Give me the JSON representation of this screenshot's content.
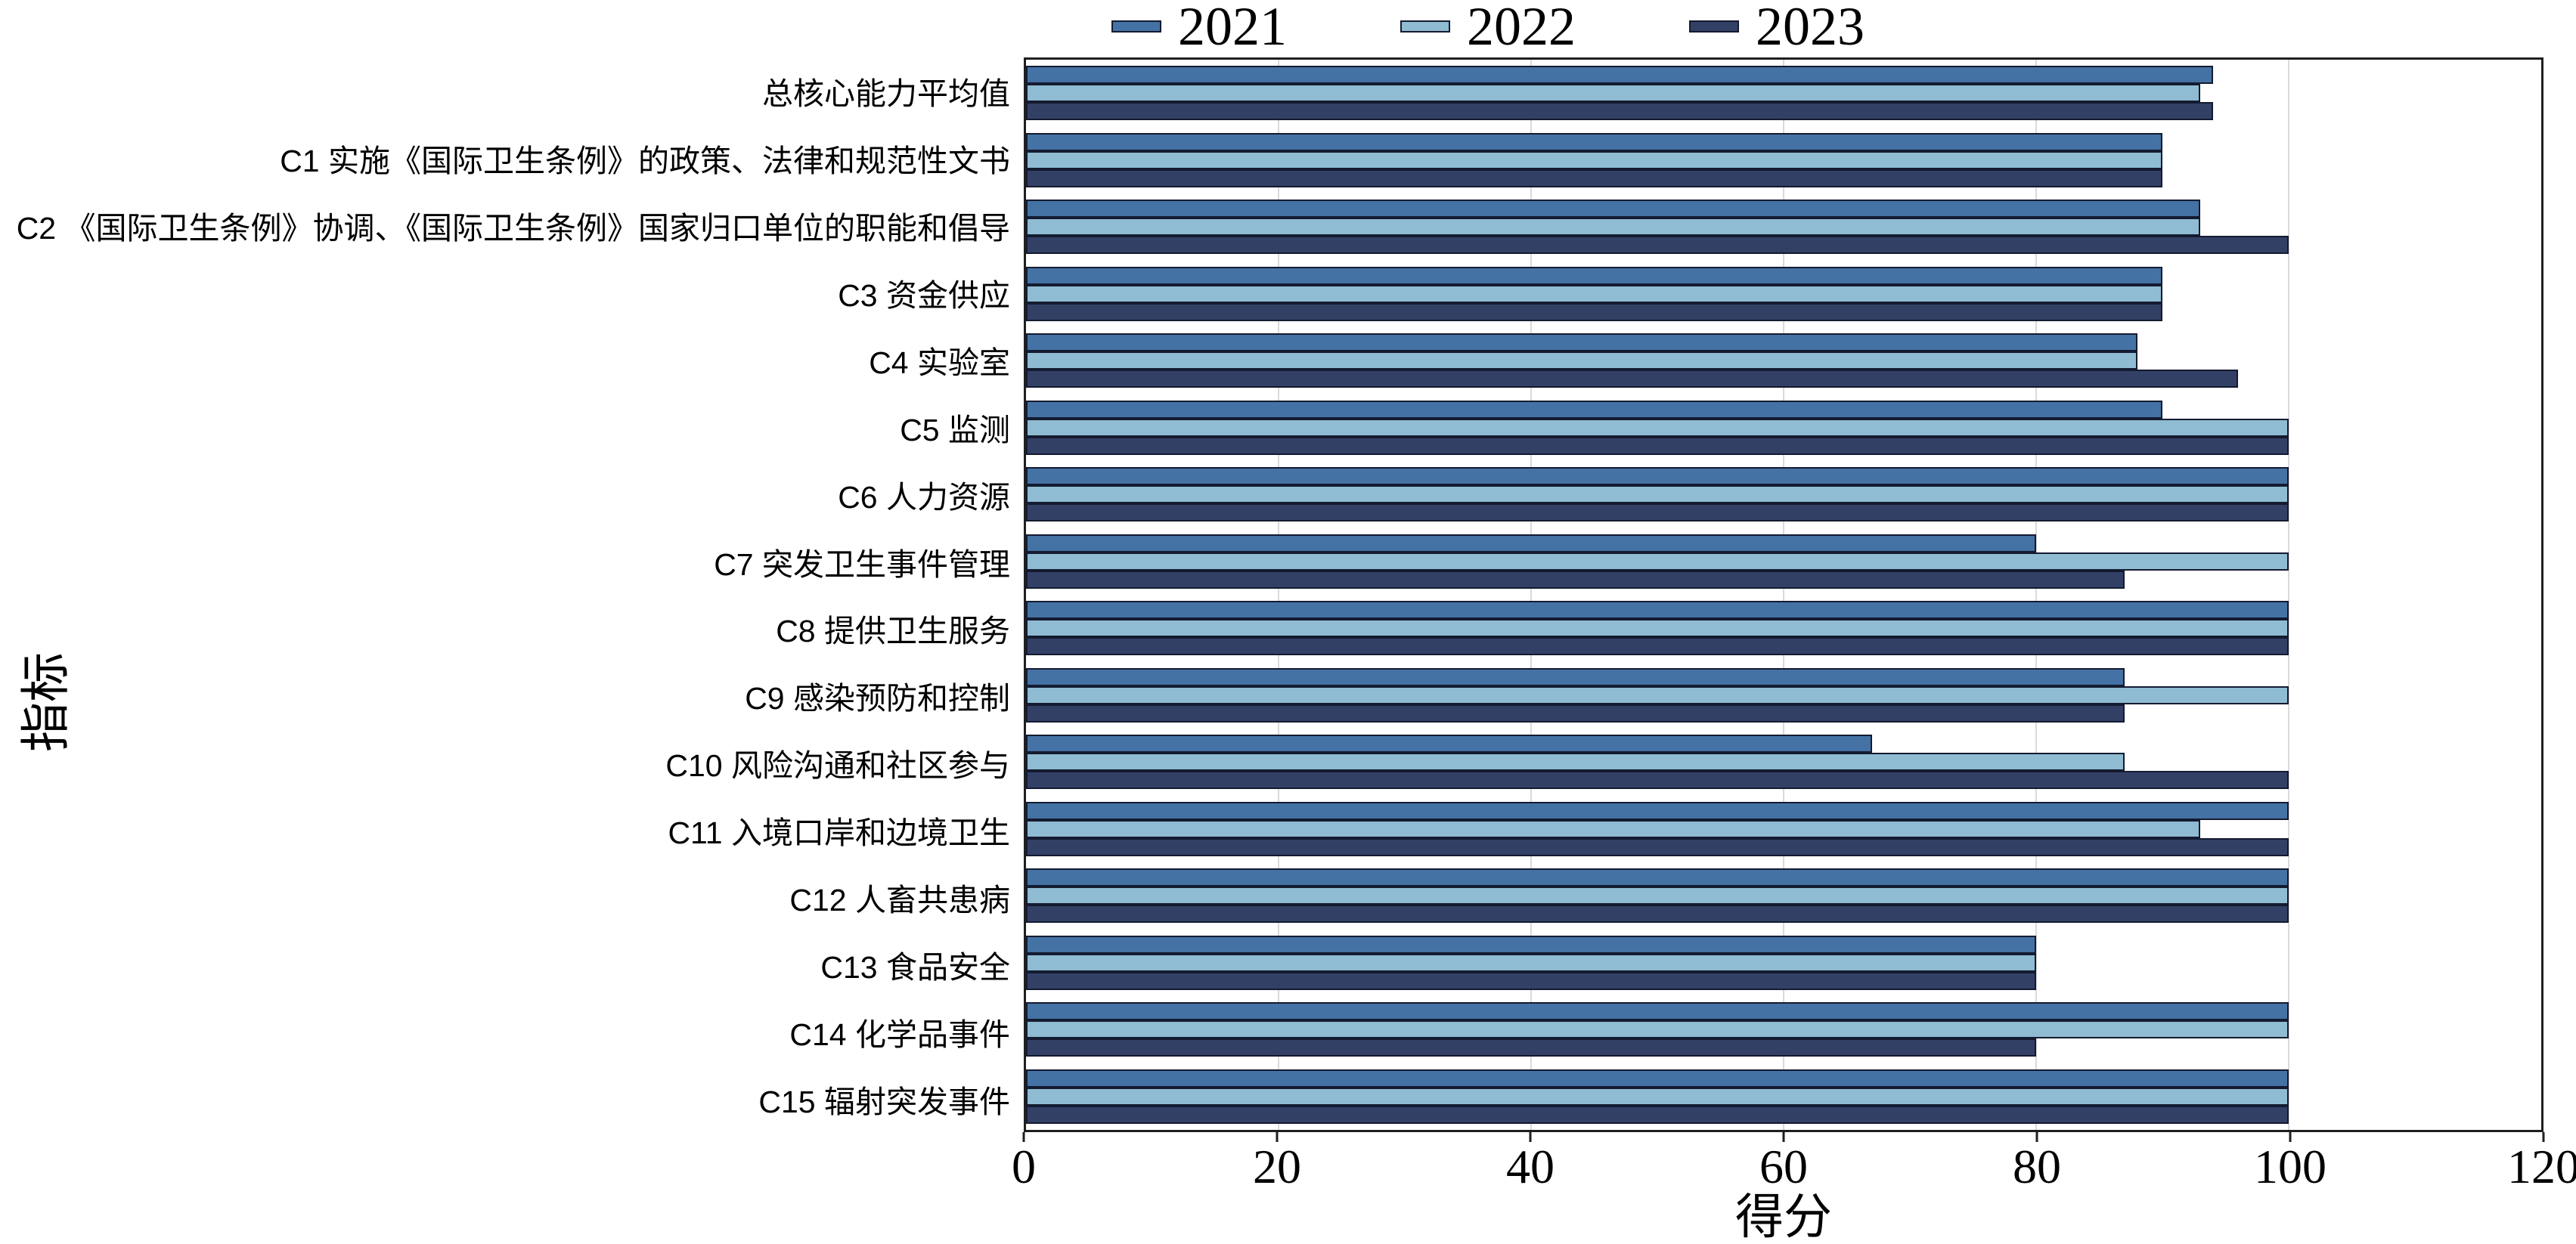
{
  "legend": {
    "items": [
      {
        "label": "2021",
        "color": "#4472a4"
      },
      {
        "label": "2022",
        "color": "#8fbcd2"
      },
      {
        "label": "2023",
        "color": "#334066"
      }
    ]
  },
  "chart_data": {
    "type": "bar",
    "orientation": "horizontal",
    "title": "",
    "xlabel": "得分",
    "ylabel": "指标",
    "xlim": [
      0,
      120
    ],
    "xticks": [
      0,
      20,
      40,
      60,
      80,
      100,
      120
    ],
    "grid": "vertical",
    "legend_position": "top",
    "bar_border_color": "#141b30",
    "grid_color": "#dadada",
    "axis_color": "#1f1f1f",
    "categories": [
      "总核心能力平均值",
      "C1 实施《国际卫生条例》的政策、法律和规范性文书",
      "C2 《国际卫生条例》协调、《国际卫生条例》国家归口单位的职能和倡导",
      "C3 资金供应",
      "C4 实验室",
      "C5 监测",
      "C6 人力资源",
      "C7 突发卫生事件管理",
      "C8 提供卫生服务",
      "C9 感染预防和控制",
      "C10 风险沟通和社区参与",
      "C11 入境口岸和边境卫生",
      "C12 人畜共患病",
      "C13 食品安全",
      "C14 化学品事件",
      "C15 辐射突发事件"
    ],
    "series": [
      {
        "name": "2021",
        "color": "#4472a4",
        "values": [
          94,
          90,
          93,
          90,
          88,
          90,
          100,
          80,
          100,
          87,
          67,
          100,
          100,
          80,
          100,
          100
        ]
      },
      {
        "name": "2022",
        "color": "#8fbcd2",
        "values": [
          93,
          90,
          93,
          90,
          88,
          100,
          100,
          100,
          100,
          100,
          87,
          93,
          100,
          80,
          100,
          100
        ]
      },
      {
        "name": "2023",
        "color": "#334066",
        "values": [
          94,
          90,
          100,
          90,
          96,
          100,
          100,
          87,
          100,
          87,
          100,
          100,
          100,
          80,
          80,
          100
        ]
      }
    ]
  }
}
